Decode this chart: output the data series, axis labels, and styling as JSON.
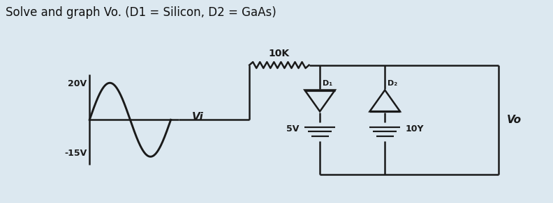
{
  "title": "Solve and graph Vo. (D1 = Silicon, D2 = GaAs)",
  "title_fontsize": 12,
  "bg_color": "#dce8f0",
  "panel_color": "#c8d4d8",
  "text_color": "#111111",
  "label_20v": "20V",
  "label_neg15v": "-15V",
  "label_vi": "Vi",
  "label_10k": "10K",
  "label_5v": "5V",
  "label_10v": "10Y",
  "label_vo": "Vo",
  "label_d1": "D₁",
  "label_d2": "D₂",
  "circuit_color": "#1a1a1a",
  "lw": 1.8
}
